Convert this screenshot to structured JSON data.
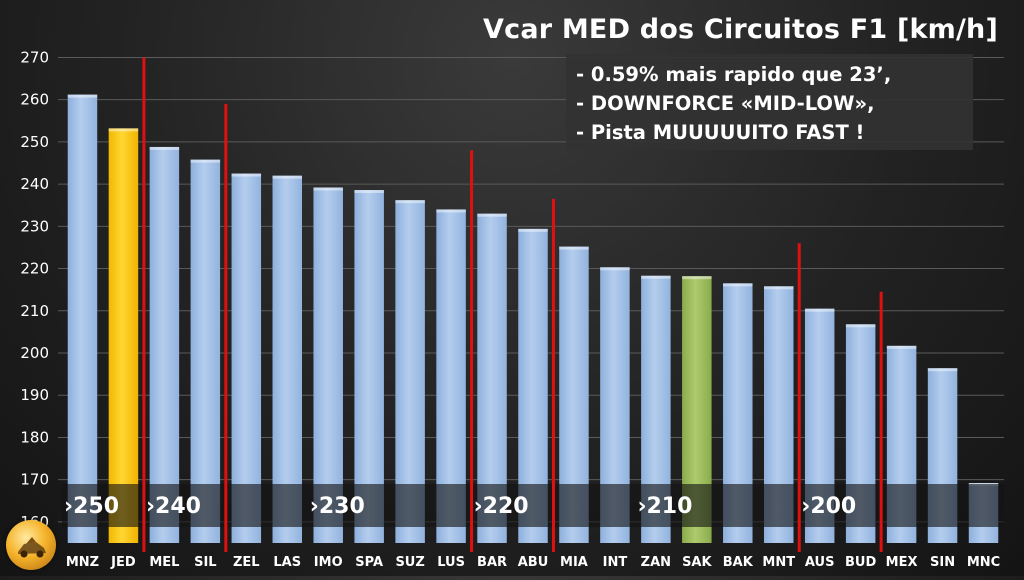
{
  "chart_data": {
    "type": "bar",
    "title": "Vcar MED dos Circuitos F1 [km/h]",
    "notes": [
      "- 0.59% mais rapido que 23’,",
      "- DOWNFORCE «MID-LOW»,",
      "- Pista MUUUUUITO FAST !"
    ],
    "categories": [
      "MNZ",
      "JED",
      "MEL",
      "SIL",
      "ZEL",
      "LAS",
      "IMO",
      "SPA",
      "SUZ",
      "LUS",
      "BAR",
      "ABU",
      "MIA",
      "INT",
      "ZAN",
      "SAK",
      "BAK",
      "MNT",
      "AUS",
      "BUD",
      "MEX",
      "SIN",
      "MNC"
    ],
    "values": [
      261.2,
      253.2,
      248.8,
      245.8,
      242.5,
      242.0,
      239.2,
      238.6,
      236.2,
      234.0,
      233.0,
      229.4,
      225.2,
      220.3,
      218.3,
      218.2,
      216.5,
      215.8,
      210.5,
      206.8,
      201.7,
      196.4,
      169.2
    ],
    "ylim": [
      155,
      272
    ],
    "yticks": [
      160,
      170,
      180,
      190,
      200,
      210,
      220,
      230,
      240,
      250,
      260,
      270
    ],
    "grid": true,
    "colors": {
      "default_bar": "#a4c2e8",
      "highlight_bar": "#ffc800",
      "secondary_highlight_bar": "#9bbb59",
      "divider": "#e01010"
    },
    "highlight": {
      "JED": "#ffc800",
      "SAK": "#9bbb59"
    },
    "dividers_after": [
      "JED",
      "SIL",
      "LUS",
      "ABU",
      "MNT",
      "BUD"
    ],
    "bands": [
      {
        "label": "›250",
        "at_category": "MNZ"
      },
      {
        "label": "›240",
        "at_category": "MEL"
      },
      {
        "label": "›230",
        "at_category": "IMO"
      },
      {
        "label": "›220",
        "at_category": "BAR"
      },
      {
        "label": "›210",
        "at_category": "ZAN"
      },
      {
        "label": "›200",
        "at_category": "AUS"
      }
    ]
  },
  "logo": {
    "icon": "car-emblem-icon"
  }
}
